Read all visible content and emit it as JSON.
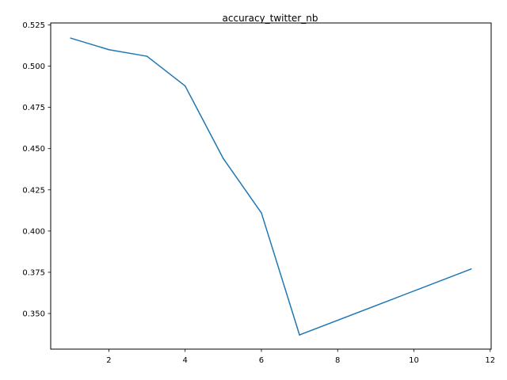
{
  "chart_data": {
    "type": "line",
    "title": "accuracy_twitter_nb",
    "xlabel": "",
    "ylabel": "",
    "xlim": [
      0.475,
      12.025
    ],
    "ylim": [
      0.3284,
      0.5262
    ],
    "x_ticks": [
      2,
      4,
      6,
      8,
      10,
      12
    ],
    "y_ticks": [
      0.35,
      0.375,
      0.4,
      0.425,
      0.45,
      0.475,
      0.5,
      0.525
    ],
    "x_tick_labels": [
      "2",
      "4",
      "6",
      "8",
      "10",
      "12"
    ],
    "y_tick_labels": [
      "0.350",
      "0.375",
      "0.400",
      "0.425",
      "0.450",
      "0.475",
      "0.500",
      "0.525"
    ],
    "grid": false,
    "series": [
      {
        "color": "#1f77b4",
        "x": [
          1,
          2,
          3,
          4,
          5,
          6,
          7,
          11.5
        ],
        "y": [
          0.517,
          0.51,
          0.506,
          0.488,
          0.444,
          0.411,
          0.337,
          0.377
        ]
      }
    ]
  }
}
